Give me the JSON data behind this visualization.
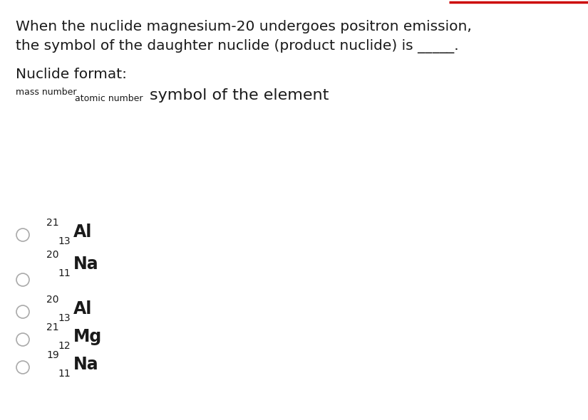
{
  "background_color": "#ffffff",
  "text_color": "#1a1a1a",
  "title_line1": "When the nuclide magnesium-20 undergoes positron emission,",
  "title_line2": "the symbol of the daughter nuclide (product nuclide) is _____.",
  "nuclide_format_label": "Nuclide format:",
  "mass_number_label": "mass number",
  "atomic_number_label": "atomic number",
  "symbol_label": "symbol of the element",
  "red_line_color": "#cc0000",
  "options": [
    {
      "mass": "21",
      "atomic": "13",
      "symbol": "Al"
    },
    {
      "mass": "20",
      "atomic": "11",
      "symbol": "Na"
    },
    {
      "mass": "20",
      "atomic": "13",
      "symbol": "Al"
    },
    {
      "mass": "21",
      "atomic": "12",
      "symbol": "Mg"
    },
    {
      "mass": "19",
      "atomic": "11",
      "symbol": "Na"
    }
  ]
}
